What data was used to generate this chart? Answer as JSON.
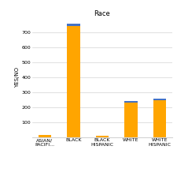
{
  "title": "Race",
  "ylabel": "YES/NO",
  "categories": [
    "ASIAN/\nPACIFI...",
    "BLACK",
    "BLACK\nHISPANIC",
    "WHITE",
    "WHITE\nHISPANIC"
  ],
  "orange_values": [
    15,
    745,
    10,
    230,
    250
  ],
  "blue_values": [
    0,
    12,
    0,
    10,
    8
  ],
  "orange_color": "#FFA500",
  "blue_color": "#4472C4",
  "ylim": [
    0,
    800
  ],
  "yticks": [
    100,
    200,
    300,
    400,
    500,
    600,
    700
  ],
  "title_fontsize": 6,
  "label_fontsize": 5,
  "tick_fontsize": 4.5,
  "bar_width": 0.45,
  "figsize": [
    2.26,
    2.23
  ],
  "dpi": 100
}
